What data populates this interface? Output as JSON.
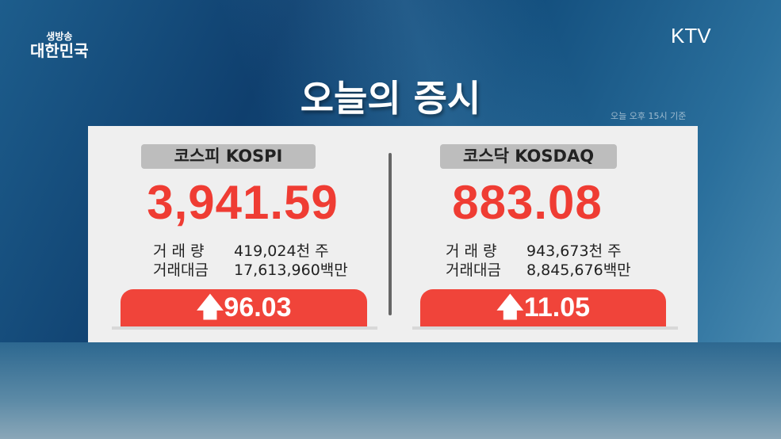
{
  "logo": {
    "small": "생방송",
    "big": "대한민국"
  },
  "channel": "KTV",
  "title": "오늘의 증시",
  "note": "오늘 오후 15시 기준",
  "markets": [
    {
      "name": "코스피 KOSPI",
      "value": "3,941.59",
      "volume_label": "거 래 량",
      "volume": "419,024천 주",
      "amount_label": "거래대금",
      "amount": "17,613,960백만",
      "change": "96.03",
      "direction": "up",
      "icon": "arrow-up-icon"
    },
    {
      "name": "코스닥 KOSDAQ",
      "value": "883.08",
      "volume_label": "거 래 량",
      "volume": "943,673천 주",
      "amount_label": "거래대금",
      "amount": "8,845,676백만",
      "change": "11.05",
      "direction": "up",
      "icon": "arrow-up-icon"
    }
  ],
  "colors": {
    "up": "#f0443a",
    "value": "#ef3c33"
  }
}
